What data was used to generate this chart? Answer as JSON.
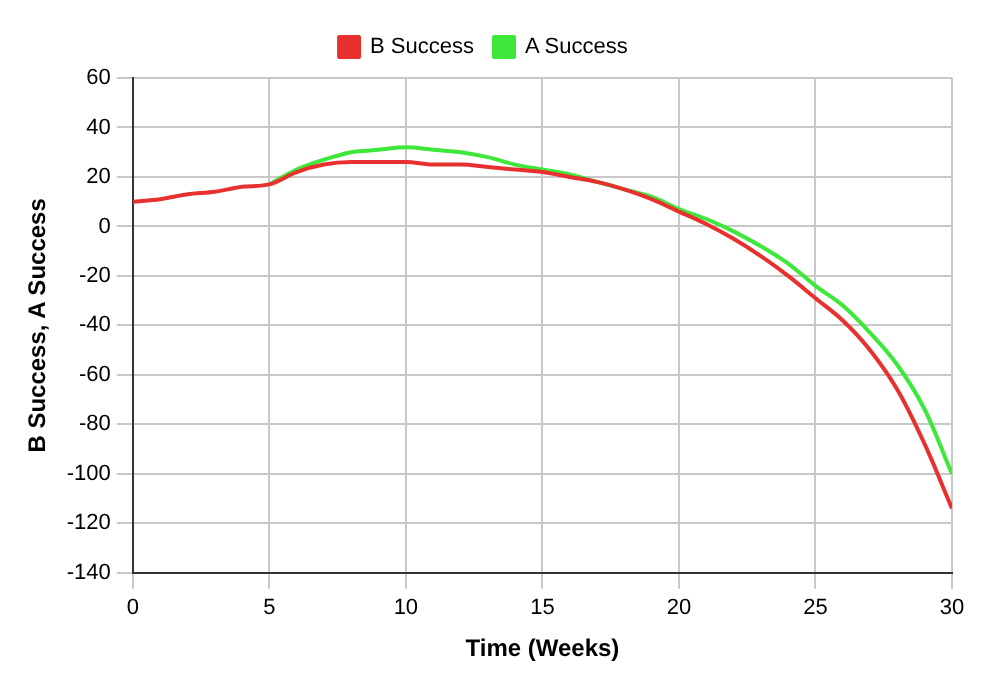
{
  "chart_data": {
    "type": "line",
    "xlabel": "Time (Weeks)",
    "ylabel": "B Success, A Success",
    "x": [
      0,
      1,
      2,
      3,
      4,
      5,
      6,
      7,
      8,
      9,
      10,
      11,
      12,
      13,
      14,
      15,
      16,
      17,
      18,
      19,
      20,
      21,
      22,
      23,
      24,
      25,
      26,
      27,
      28,
      29,
      30
    ],
    "series": [
      {
        "name": "B Success",
        "color": "#e8302f",
        "values": [
          10,
          11,
          13,
          14,
          16,
          17,
          22,
          25,
          26,
          26,
          26,
          25,
          25,
          24,
          23,
          22,
          20,
          18,
          15,
          11,
          6,
          1,
          -5,
          -12,
          -20,
          -29,
          -38,
          -50,
          -66,
          -88,
          -114
        ]
      },
      {
        "name": "A Success",
        "color": "#3ee83a",
        "values": [
          null,
          null,
          null,
          null,
          null,
          17,
          23,
          27,
          30,
          31,
          32,
          31,
          30,
          28,
          25,
          23,
          21,
          18,
          15,
          12,
          7,
          3,
          -2,
          -8,
          -15,
          -24,
          -32,
          -43,
          -56,
          -74,
          -100
        ]
      }
    ],
    "xlim": [
      0,
      30
    ],
    "xticks": [
      0,
      5,
      10,
      15,
      20,
      25,
      30
    ],
    "ylim": [
      -140,
      60
    ],
    "yticks": [
      -140,
      -120,
      -100,
      -80,
      -60,
      -40,
      -20,
      0,
      20,
      40,
      60
    ],
    "grid": true,
    "legend": "top",
    "marker": "none",
    "line_style": "solid"
  }
}
